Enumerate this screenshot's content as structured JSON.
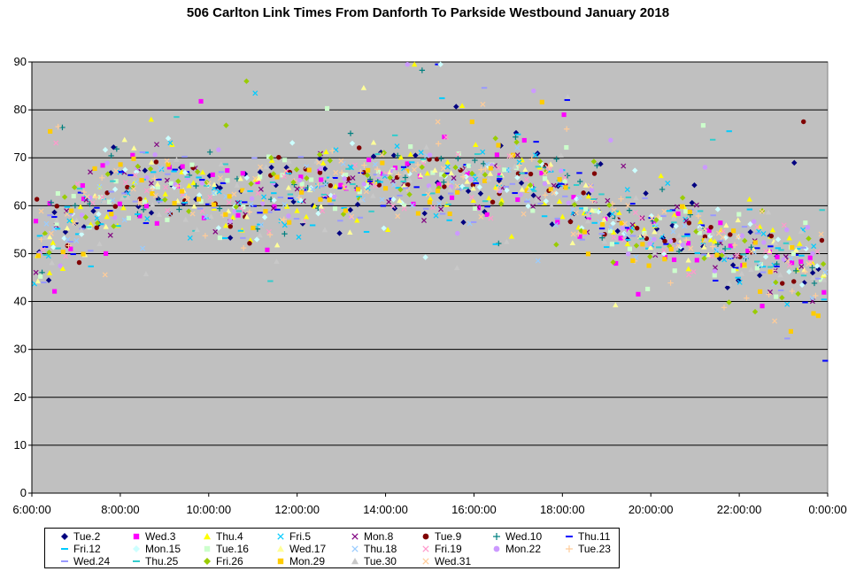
{
  "chart_data": {
    "type": "scatter",
    "title": "506 Carlton Link Times From Danforth To Parkside Westbound January 2018",
    "xlabel": "",
    "ylabel": "",
    "x_ticks": [
      "6:00:00",
      "8:00:00",
      "10:00:00",
      "12:00:00",
      "14:00:00",
      "16:00:00",
      "18:00:00",
      "20:00:00",
      "22:00:00",
      "0:00:00"
    ],
    "x_range_hours": [
      6,
      24
    ],
    "y_ticks": [
      "0",
      "10",
      "20",
      "30",
      "40",
      "50",
      "60",
      "70",
      "80",
      "90"
    ],
    "ylim": [
      0,
      90
    ],
    "grid": "horizontal",
    "legend_position": "bottom",
    "plot_background": "#c0c0c0",
    "trend_profile": {
      "x_hours": [
        6.0,
        6.5,
        7.0,
        7.5,
        8.0,
        8.5,
        9.0,
        9.5,
        10.0,
        10.5,
        11.0,
        11.5,
        12.0,
        12.5,
        13.0,
        13.5,
        14.0,
        14.5,
        15.0,
        15.5,
        16.0,
        16.5,
        17.0,
        17.5,
        18.0,
        18.5,
        19.0,
        19.5,
        20.0,
        20.5,
        21.0,
        21.5,
        22.0,
        22.5,
        23.0,
        23.5,
        24.0
      ],
      "y": [
        49,
        54,
        57,
        60,
        63,
        64,
        64,
        63,
        61,
        60,
        61,
        62,
        63,
        64,
        64,
        65,
        66,
        66,
        65,
        64,
        65,
        66,
        67,
        65,
        62,
        59,
        57,
        56,
        55,
        54,
        53,
        52,
        51,
        50,
        48,
        47,
        46
      ]
    },
    "series": [
      {
        "name": "Tue.2",
        "marker": "diamond",
        "color": "#000080",
        "n": 90
      },
      {
        "name": "Wed.3",
        "marker": "square",
        "color": "#ff00ff",
        "n": 80
      },
      {
        "name": "Thu.4",
        "marker": "triangle",
        "color": "#ffff00",
        "n": 90
      },
      {
        "name": "Fri.5",
        "marker": "x",
        "color": "#00ccff",
        "n": 60
      },
      {
        "name": "Mon.8",
        "marker": "x",
        "color": "#800080",
        "n": 60
      },
      {
        "name": "Tue.9",
        "marker": "circle",
        "color": "#800000",
        "n": 60
      },
      {
        "name": "Wed.10",
        "marker": "plus",
        "color": "#008080",
        "n": 60
      },
      {
        "name": "Thu.11",
        "marker": "dash",
        "color": "#0000ff",
        "n": 60
      },
      {
        "name": "Fri.12",
        "marker": "dash",
        "color": "#00ccff",
        "n": 60
      },
      {
        "name": "Mon.15",
        "marker": "diamond",
        "color": "#ccffff",
        "n": 70
      },
      {
        "name": "Tue.16",
        "marker": "square",
        "color": "#ccffcc",
        "n": 70
      },
      {
        "name": "Wed.17",
        "marker": "triangle",
        "color": "#ffff99",
        "n": 60
      },
      {
        "name": "Thu.18",
        "marker": "x",
        "color": "#99ccff",
        "n": 60
      },
      {
        "name": "Fri.19",
        "marker": "x",
        "color": "#ff99cc",
        "n": 60
      },
      {
        "name": "Mon.22",
        "marker": "circle",
        "color": "#cc99ff",
        "n": 60
      },
      {
        "name": "Tue.23",
        "marker": "plus",
        "color": "#ffcc99",
        "n": 60
      },
      {
        "name": "Wed.24",
        "marker": "dash",
        "color": "#9999ff",
        "n": 60
      },
      {
        "name": "Thu.25",
        "marker": "dash",
        "color": "#33cccc",
        "n": 60
      },
      {
        "name": "Fri.26",
        "marker": "diamond",
        "color": "#99cc00",
        "n": 70
      },
      {
        "name": "Mon.29",
        "marker": "square",
        "color": "#ffcc00",
        "n": 70
      },
      {
        "name": "Tue.30",
        "marker": "triangle",
        "color": "#c8c8c8",
        "n": 70
      },
      {
        "name": "Wed.31",
        "marker": "x",
        "color": "#ffcc99",
        "n": 60
      }
    ]
  }
}
